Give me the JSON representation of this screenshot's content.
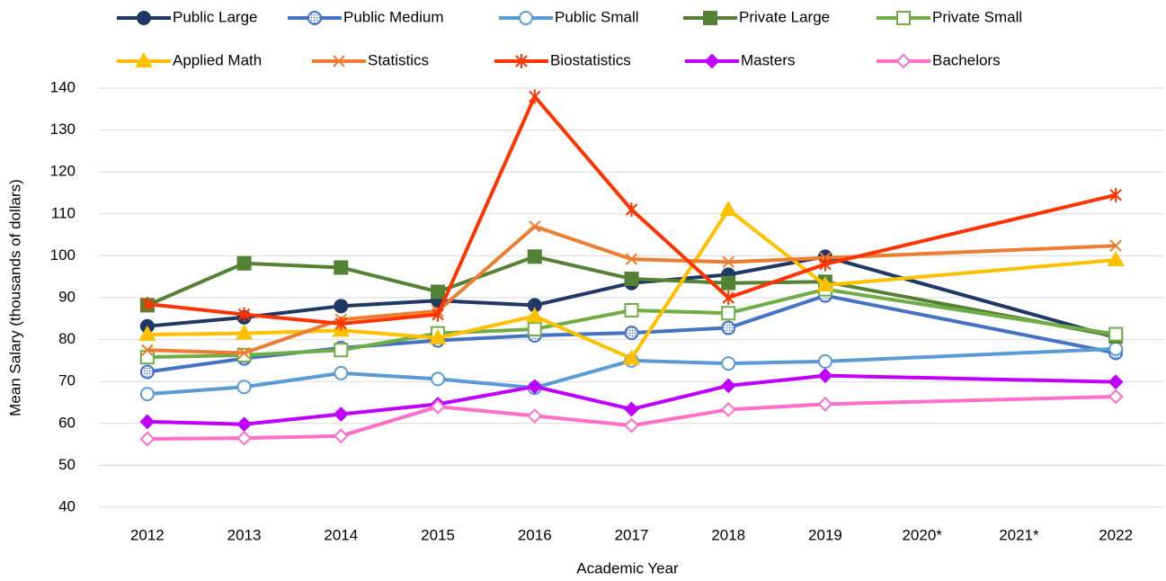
{
  "chart_data": {
    "type": "line",
    "x_label": "Academic Year",
    "y_label": "Mean Salary (thousands of dollars)",
    "categories": [
      "2012",
      "2013",
      "2014",
      "2015",
      "2016",
      "2017",
      "2018",
      "2019",
      "2020*",
      "2021*",
      "2022"
    ],
    "ylim": [
      40,
      140
    ],
    "yticks": [
      40,
      50,
      60,
      70,
      80,
      90,
      100,
      110,
      120,
      130,
      140
    ],
    "grid": true,
    "span_gaps": true,
    "legend": "top",
    "series": [
      {
        "name": "Public Large",
        "color": "#203864",
        "marker": "circle",
        "marker_fill": "filled",
        "values": [
          83.2,
          85.3,
          88,
          89.3,
          88.2,
          93.5,
          95.5,
          99.8,
          null,
          null,
          80.5
        ]
      },
      {
        "name": "Public Medium",
        "color": "#4472c4",
        "marker": "circle",
        "marker_fill": "pattern",
        "values": [
          72.3,
          75.5,
          78,
          79.8,
          81,
          81.6,
          82.8,
          90.5,
          null,
          null,
          76.8
        ]
      },
      {
        "name": "Public Small",
        "color": "#5b9bd5",
        "marker": "circle",
        "marker_fill": "open",
        "values": [
          67,
          68.7,
          72,
          70.6,
          68.5,
          75,
          74.3,
          74.8,
          null,
          null,
          77.8
        ]
      },
      {
        "name": "Private Large",
        "color": "#548235",
        "marker": "square",
        "marker_fill": "filled",
        "values": [
          88.2,
          98.2,
          97.2,
          91.4,
          99.8,
          94.5,
          93.5,
          93.8,
          null,
          null,
          80.8
        ]
      },
      {
        "name": "Private Small",
        "color": "#70ad47",
        "marker": "square",
        "marker_fill": "open",
        "values": [
          75.8,
          76.3,
          77.5,
          81.5,
          82.5,
          87,
          86.3,
          92,
          null,
          null,
          81.3
        ]
      },
      {
        "name": "Applied Math",
        "color": "#ffc000",
        "marker": "triangle",
        "marker_fill": "filled",
        "values": [
          81.2,
          81.5,
          82.2,
          80.4,
          85.6,
          75.5,
          111,
          93,
          null,
          null,
          99
        ]
      },
      {
        "name": "Statistics",
        "color": "#ed7d31",
        "marker": "x",
        "marker_fill": "filled",
        "values": [
          77.5,
          76.8,
          84.8,
          86.8,
          107,
          99.2,
          98.5,
          99.5,
          null,
          null,
          102.4
        ]
      },
      {
        "name": "Biostatistics",
        "color": "#ff3300",
        "marker": "star",
        "marker_fill": "filled",
        "values": [
          88.5,
          86,
          83.8,
          86,
          138,
          111,
          90,
          98,
          null,
          null,
          114.5
        ]
      },
      {
        "name": "Masters",
        "color": "#bf00ff",
        "marker": "diamond",
        "marker_fill": "filled",
        "values": [
          60.4,
          59.8,
          62.2,
          64.6,
          68.8,
          63.4,
          69,
          71.4,
          null,
          null,
          69.9
        ]
      },
      {
        "name": "Bachelors",
        "color": "#ff6ec7",
        "marker": "diamond",
        "marker_fill": "open",
        "values": [
          56.3,
          56.5,
          57,
          64,
          61.8,
          59.5,
          63.3,
          64.6,
          null,
          null,
          66.4
        ]
      }
    ]
  }
}
